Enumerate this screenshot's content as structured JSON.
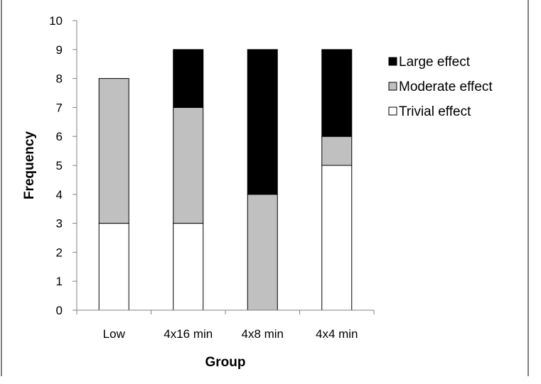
{
  "chart_data": {
    "type": "bar",
    "stacked": true,
    "categories": [
      "Low",
      "4x16 min",
      "4x8 min",
      "4x4 min"
    ],
    "series": [
      {
        "name": "Trivial effect",
        "color": "#ffffff",
        "values": [
          3,
          3,
          0,
          5
        ]
      },
      {
        "name": "Moderate effect",
        "color": "#c0c0c0",
        "values": [
          5,
          4,
          4,
          1
        ]
      },
      {
        "name": "Large effect",
        "color": "#000000",
        "values": [
          0,
          2,
          5,
          3
        ]
      }
    ],
    "legend_order": [
      "Large effect",
      "Moderate effect",
      "Trivial effect"
    ],
    "xlabel": "Group",
    "ylabel": "Frequency",
    "ylim": [
      0,
      10
    ],
    "yticks": [
      "0",
      "1",
      "2",
      "3",
      "4",
      "5",
      "6",
      "7",
      "8",
      "9",
      "10"
    ],
    "grid": false,
    "legend_position": "right"
  }
}
